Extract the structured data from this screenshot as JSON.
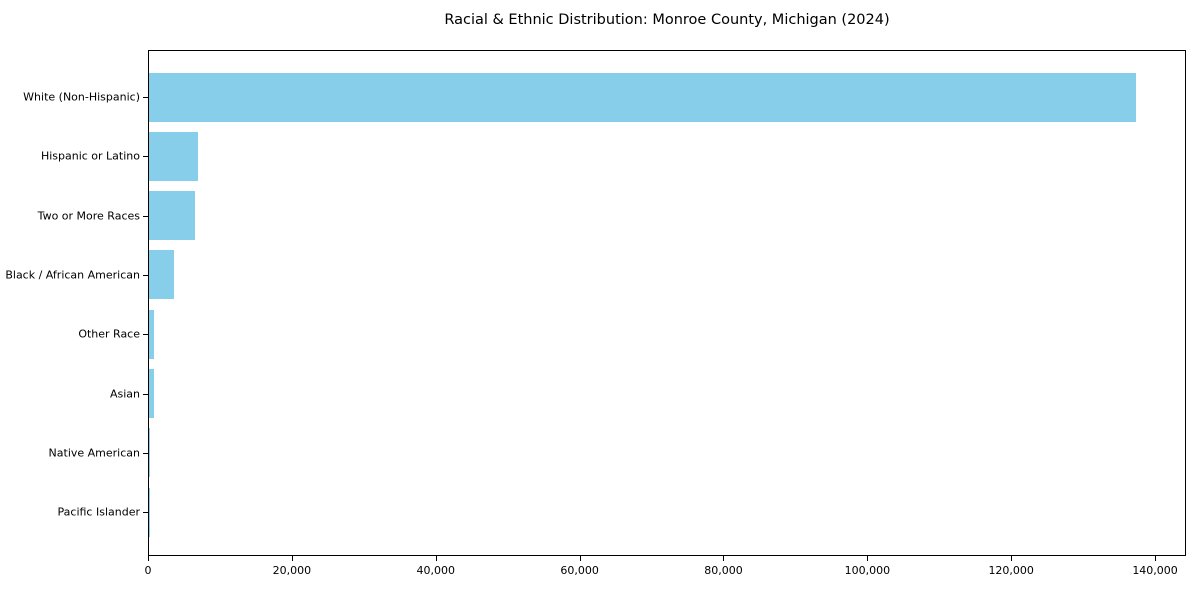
{
  "chart_data": {
    "type": "bar",
    "orientation": "horizontal",
    "title": "Racial & Ethnic Distribution: Monroe County, Michigan (2024)",
    "categories": [
      "White (Non-Hispanic)",
      "Hispanic or Latino",
      "Two or More Races",
      "Black / African American",
      "Other Race",
      "Asian",
      "Native American",
      "Pacific Islander"
    ],
    "values": [
      137500,
      6800,
      6400,
      3500,
      760,
      740,
      100,
      30
    ],
    "xlabel": "",
    "ylabel": "",
    "xlim": [
      0,
      144300
    ],
    "xticks": [
      0,
      20000,
      40000,
      60000,
      80000,
      100000,
      120000,
      140000
    ],
    "xtick_labels": [
      "0",
      "20,000",
      "40,000",
      "60,000",
      "80,000",
      "100,000",
      "120,000",
      "140,000"
    ],
    "bar_color": "#87CEEB",
    "axis_color": "#000000",
    "background_color": "#ffffff",
    "grid": false,
    "legend": null
  }
}
